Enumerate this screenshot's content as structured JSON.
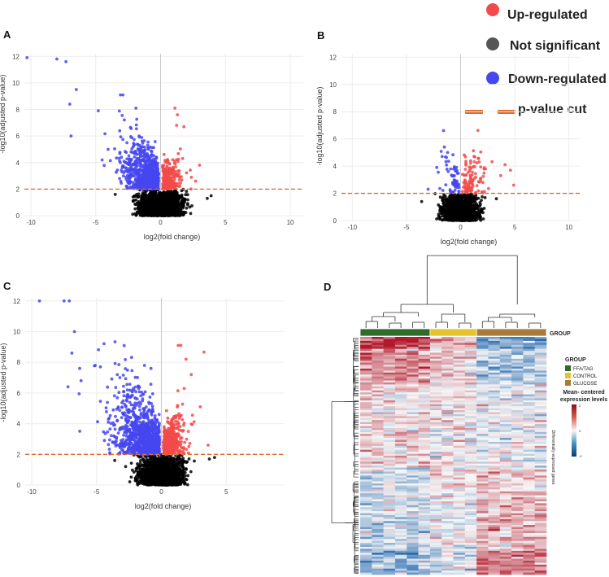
{
  "legend": {
    "up": {
      "label": "Up-regulated",
      "color": "#f24a4a"
    },
    "ns": {
      "label": "Not significant",
      "color": "#555555"
    },
    "down": {
      "label": "Down-regulated",
      "color": "#4747f0"
    },
    "cut": {
      "label": "p-value cut",
      "color": "#e06a2a"
    }
  },
  "panels": {
    "A": {
      "label": "A"
    },
    "B": {
      "label": "B"
    },
    "C": {
      "label": "C"
    },
    "D": {
      "label": "D"
    }
  },
  "chart_data": [
    {
      "id": "A",
      "type": "scatter",
      "xlabel": "log2(fold change)",
      "ylabel": "-log10(adjusted p-value)",
      "xlim": [
        -10.5,
        11
      ],
      "ylim": [
        0,
        12.2
      ],
      "xticks": [
        -10,
        -5,
        0,
        5,
        10
      ],
      "yticks": [
        0,
        2,
        4,
        6,
        8,
        10,
        12
      ],
      "cutoff": 2,
      "grid": true,
      "down_highlights": [
        [
          -10.3,
          11.9
        ],
        [
          -8,
          11.8
        ],
        [
          -7.3,
          11.6
        ],
        [
          -6.5,
          9.5
        ],
        [
          -7,
          8.4
        ],
        [
          -6.9,
          6
        ],
        [
          -4.8,
          7.9
        ],
        [
          -3.1,
          9.1
        ],
        [
          -2.9,
          9.1
        ],
        [
          -1.9,
          8.1
        ]
      ],
      "up_highlights": [
        [
          1.1,
          8.1
        ],
        [
          1.3,
          7.6
        ],
        [
          1.8,
          6.7
        ],
        [
          3.0,
          3.8
        ],
        [
          2.7,
          2.6
        ]
      ],
      "ns_extremes": [
        [
          3.6,
          1.3
        ],
        [
          3.9,
          1.5
        ],
        [
          -3.5,
          1.6
        ]
      ],
      "density": {
        "down": 900,
        "up": 230,
        "ns": 2300,
        "spread_down": 1.2,
        "spread_up": 0.7
      }
    },
    {
      "id": "B",
      "type": "scatter",
      "xlabel": "log2(fold change)",
      "ylabel": "-log10(adjusted p-value)",
      "xlim": [
        -11,
        11
      ],
      "ylim": [
        0,
        12.2
      ],
      "xticks": [
        -10,
        -5,
        0,
        5,
        10
      ],
      "yticks": [
        0,
        2,
        4,
        6,
        8,
        10,
        12
      ],
      "cutoff": 2,
      "grid": true,
      "down_highlights": [
        [
          -1.5,
          5.4
        ],
        [
          -1.2,
          5.0
        ],
        [
          -2.2,
          3.9
        ],
        [
          -3.0,
          2.3
        ]
      ],
      "up_highlights": [
        [
          4.1,
          4.1
        ],
        [
          4.6,
          3.7
        ],
        [
          3.7,
          3.3
        ],
        [
          4.9,
          2.6
        ],
        [
          2.3,
          3.8
        ]
      ],
      "ns_extremes": [
        [
          3.3,
          1.6
        ],
        [
          -3.6,
          1.4
        ]
      ],
      "density": {
        "down": 60,
        "up": 100,
        "ns": 1800,
        "spread_down": 0.8,
        "spread_up": 1.0
      }
    },
    {
      "id": "C",
      "type": "scatter",
      "xlabel": "log2(fold change)",
      "ylabel": "-log10(adjusted p-value)",
      "xlim": [
        -10.5,
        9.5
      ],
      "ylim": [
        0,
        12.2
      ],
      "xticks": [
        -10,
        -5,
        0,
        5
      ],
      "yticks": [
        0,
        2,
        4,
        6,
        8,
        10,
        12
      ],
      "cutoff": 2,
      "grid": true,
      "down_highlights": [
        [
          -9.4,
          12
        ],
        [
          -7.5,
          12
        ],
        [
          -7.1,
          12
        ],
        [
          -6.7,
          10
        ],
        [
          -6.9,
          8.6
        ],
        [
          -7.2,
          6.4
        ],
        [
          -5.1,
          7.8
        ],
        [
          -4.7,
          7.7
        ],
        [
          -3.2,
          7.0
        ],
        [
          -1.3,
          7.8
        ],
        [
          -0.8,
          7.6
        ],
        [
          -6.3,
          7.6
        ]
      ],
      "up_highlights": [
        [
          1.3,
          9.1
        ],
        [
          1.5,
          9.1
        ],
        [
          1.9,
          8.2
        ],
        [
          2.3,
          7.2
        ],
        [
          3.0,
          5.1
        ],
        [
          3.6,
          2.6
        ]
      ],
      "ns_extremes": [
        [
          3.7,
          1.7
        ],
        [
          4.1,
          1.8
        ],
        [
          -3.6,
          1.6
        ]
      ],
      "density": {
        "down": 1100,
        "up": 380,
        "ns": 2200,
        "spread_down": 1.6,
        "spread_up": 0.8
      }
    },
    {
      "id": "D",
      "type": "heatmap",
      "group_label": "GROUP",
      "groups": [
        {
          "name": "FFA/TAG",
          "color": "#2f6b2a",
          "count": 6
        },
        {
          "name": "CONTROL",
          "color": "#e3c22c",
          "count": 4
        },
        {
          "name": "GLUCOSE",
          "color": "#a97a3c",
          "count": 6
        }
      ],
      "colorbar_title": "Mean- centered expression levels",
      "colorbar_ticks": [
        "2",
        "0",
        "-2"
      ],
      "row_label": "Differentially expressed genes",
      "rows": 120
    }
  ]
}
